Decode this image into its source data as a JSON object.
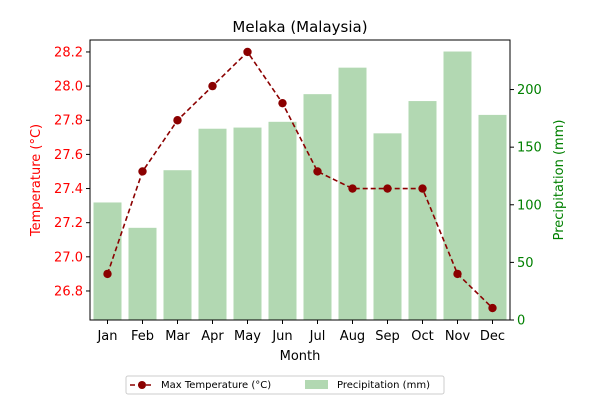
{
  "chart_data": {
    "type": "bar+line",
    "title": "Melaka (Malaysia)",
    "xlabel": "Month",
    "categories": [
      "Jan",
      "Feb",
      "Mar",
      "Apr",
      "May",
      "Jun",
      "Jul",
      "Aug",
      "Sep",
      "Oct",
      "Nov",
      "Dec"
    ],
    "y_left": {
      "label": "Temperature (°C)",
      "range": [
        26.63,
        28.27
      ],
      "ticks": [
        "26.8",
        "27.0",
        "27.2",
        "27.4",
        "27.6",
        "27.8",
        "28.0",
        "28.2"
      ],
      "color": "#ff0000"
    },
    "y_right": {
      "label": "Precipitation (mm)",
      "range": [
        0,
        243
      ],
      "ticks": [
        "0",
        "50",
        "100",
        "150",
        "200"
      ],
      "color": "#008000"
    },
    "series": [
      {
        "name": "Max Temperature (°C)",
        "kind": "line",
        "axis": "left",
        "color": "#8b0000",
        "values": [
          26.9,
          27.5,
          27.8,
          28.0,
          28.2,
          27.9,
          27.5,
          27.4,
          27.4,
          27.4,
          26.9,
          26.7
        ]
      },
      {
        "name": "Precipitation (mm)",
        "kind": "bar",
        "axis": "right",
        "color": "#b2d8b2",
        "values": [
          102,
          80,
          130,
          166,
          167,
          172,
          196,
          219,
          162,
          190,
          233,
          178
        ]
      }
    ],
    "legend": "bottom-center",
    "grid": false
  }
}
